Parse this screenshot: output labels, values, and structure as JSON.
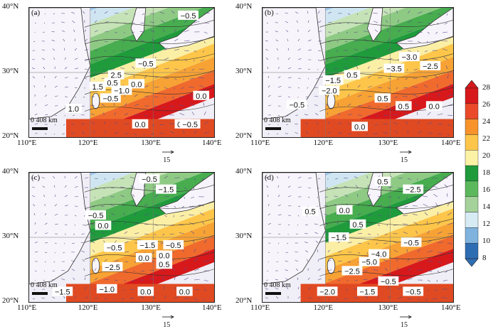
{
  "panels": [
    {
      "id": "a",
      "label": "(a)",
      "lat_labels": [
        "40°N",
        "30°N",
        "20°N"
      ],
      "lon_labels": [
        "110°E",
        "120°E",
        "130°E",
        "140°E"
      ],
      "scale_label": "0 408 km",
      "vector_ref_label": "15",
      "contour_labels": [
        "−0.5",
        "−0.5",
        "2.5",
        "0.5",
        "−1.0",
        "1.5",
        "−0.5",
        "0.0",
        "1.0",
        "0.0",
        "0.0",
        "0.0",
        "−0.5"
      ]
    },
    {
      "id": "b",
      "label": "(b)",
      "lat_labels": [
        "40°N",
        "30°N",
        "20°N"
      ],
      "lon_labels": [
        "110°E",
        "120°E",
        "130°E",
        "140°E"
      ],
      "scale_label": "0 408 km",
      "vector_ref_label": "15",
      "contour_labels": [
        "−3.0",
        "−2.5",
        "−3.5",
        "0.5",
        "−1.5",
        "−2.0",
        "0.5",
        "−0.5",
        "0.5",
        "0.0",
        "0.0"
      ]
    },
    {
      "id": "c",
      "label": "(c)",
      "lat_labels": [
        "40°N",
        "30°N",
        "20°N"
      ],
      "lon_labels": [
        "110°E",
        "120°E",
        "130°E",
        "140°E"
      ],
      "scale_label": "0 408 km",
      "vector_ref_label": "15",
      "contour_labels": [
        "−0.5",
        "−1.5",
        "−0.5",
        "0.0",
        "−1.5",
        "−0.5",
        "−0.5",
        "0.0",
        "0.0",
        "0.5",
        "−2.5",
        "−1.5",
        "−1.0",
        "0.0",
        "0.0"
      ]
    },
    {
      "id": "d",
      "label": "(d)",
      "lat_labels": [
        "40°N",
        "30°N",
        "20°N"
      ],
      "lon_labels": [
        "110°E",
        "120°E",
        "130°E",
        "140°E"
      ],
      "scale_label": "0 408 km",
      "vector_ref_label": "15",
      "contour_labels": [
        "0.5",
        "−2.5",
        "0.5",
        "0.0",
        "0.5",
        "−1.5",
        "−0.5",
        "−4.0",
        "−5.0",
        "−2.5",
        "−0.5",
        "−2.0",
        "−1.5",
        "−0.5"
      ]
    }
  ],
  "colorbar": {
    "ticks": [
      "28",
      "26",
      "24",
      "22",
      "20",
      "18",
      "16",
      "14",
      "12",
      "10",
      "8"
    ],
    "colors": [
      "#d7191c",
      "#ea4a2a",
      "#f7932a",
      "#fdc64a",
      "#fbf2a6",
      "#1f9b3c",
      "#5cb85c",
      "#a4d29a",
      "#d7ebf5",
      "#7fb3de",
      "#2f6db3"
    ]
  }
}
